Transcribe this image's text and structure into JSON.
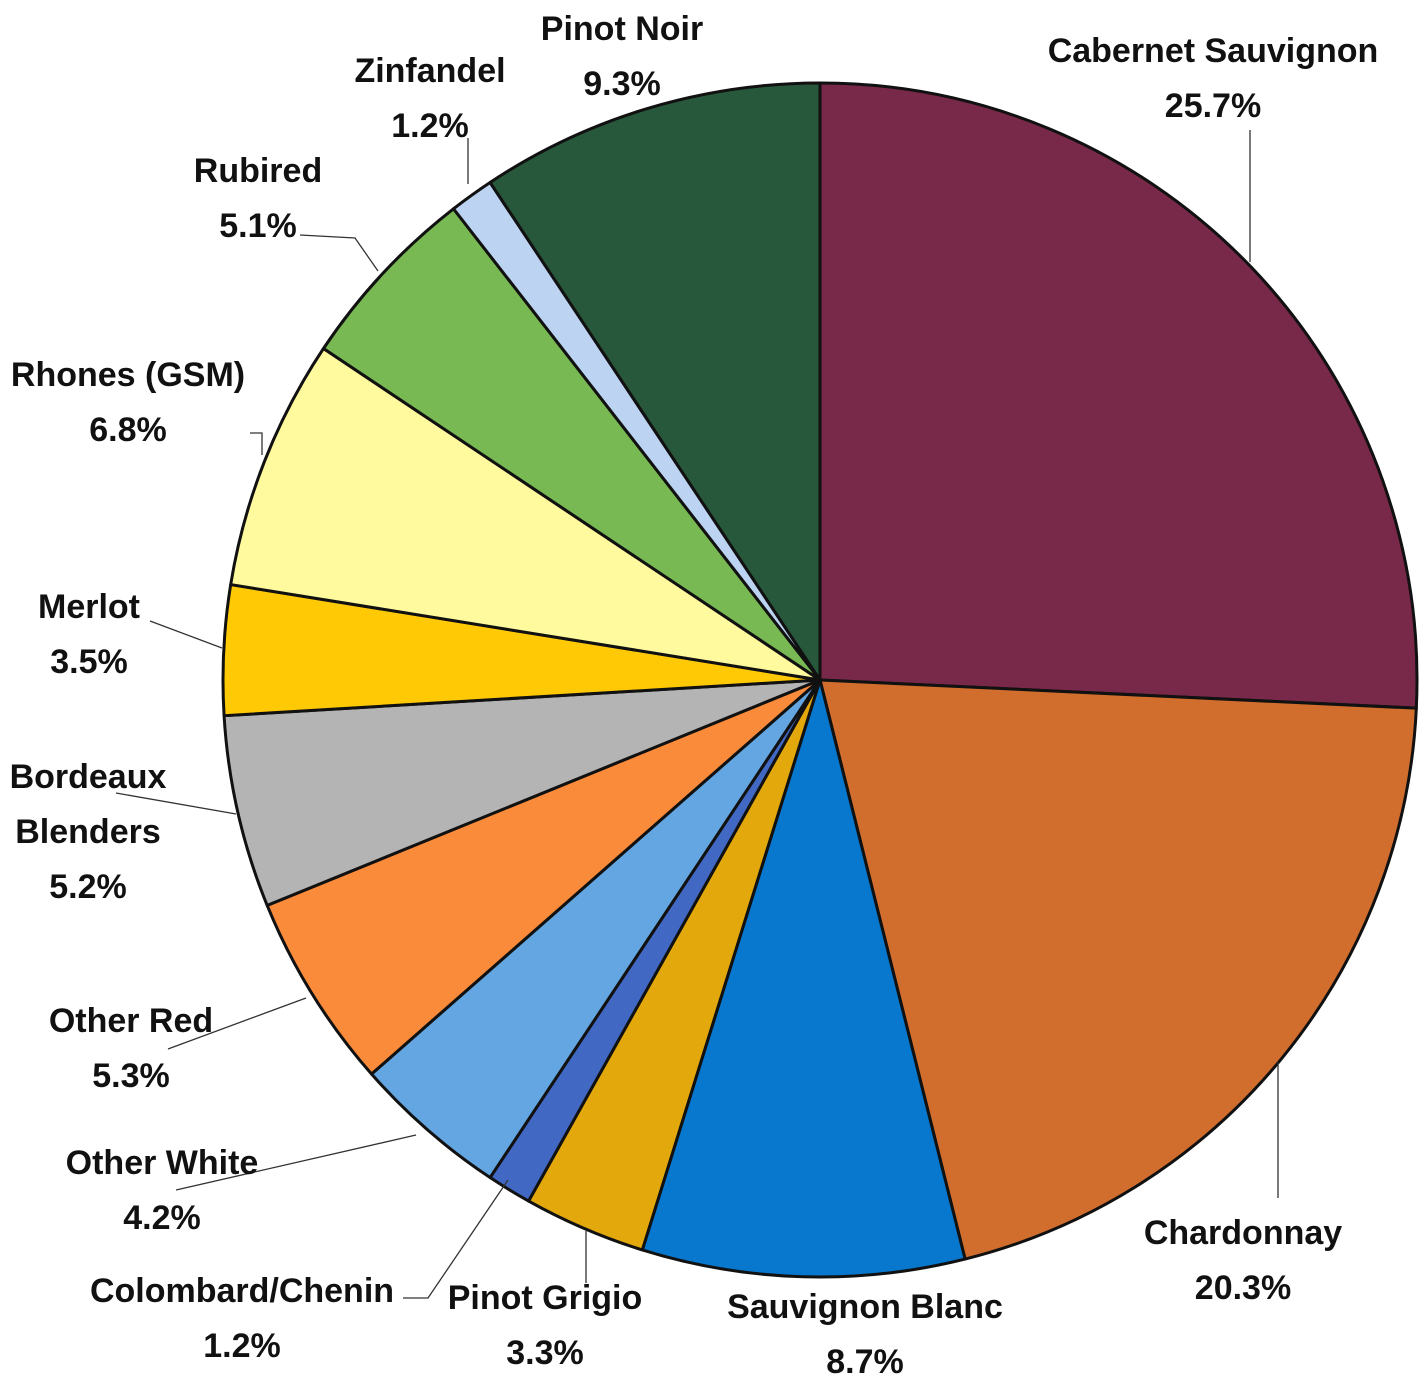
{
  "chart_data": {
    "type": "pie",
    "start": "12 o'clock",
    "direction": "clockwise",
    "slices": [
      {
        "label": "Cabernet Sauvignon",
        "value": 25.7,
        "display": "25.7%",
        "color": "#782848"
      },
      {
        "label": "Chardonnay",
        "value": 20.3,
        "display": "20.3%",
        "color": "#D16E2E"
      },
      {
        "label": "Sauvignon Blanc",
        "value": 8.7,
        "display": "8.7%",
        "color": "#0877CE"
      },
      {
        "label": "Pinot Grigio",
        "value": 3.3,
        "display": "3.3%",
        "color": "#E3A90C"
      },
      {
        "label": "Colombard/Chenin",
        "value": 1.2,
        "display": "1.2%",
        "color": "#4169C3"
      },
      {
        "label": "Other White",
        "value": 4.2,
        "display": "4.2%",
        "color": "#64A6E1"
      },
      {
        "label": "Other Red",
        "value": 5.3,
        "display": "5.3%",
        "color": "#F98B3A"
      },
      {
        "label": "Bordeaux Blenders",
        "label_lines": [
          "Bordeaux",
          "Blenders"
        ],
        "value": 5.2,
        "display": "5.2%",
        "color": "#B4B4B4"
      },
      {
        "label": "Merlot",
        "value": 3.5,
        "display": "3.5%",
        "color": "#FFCA05"
      },
      {
        "label": "Rhones (GSM)",
        "value": 6.8,
        "display": "6.8%",
        "color": "#FFFA9E"
      },
      {
        "label": "Rubired",
        "value": 5.1,
        "display": "5.1%",
        "color": "#78B953"
      },
      {
        "label": "Zinfandel",
        "value": 1.2,
        "display": "1.2%",
        "color": "#BCD3F1"
      },
      {
        "label": "Pinot Noir",
        "value": 9.3,
        "display": "9.3%",
        "color": "#28583C"
      }
    ]
  }
}
